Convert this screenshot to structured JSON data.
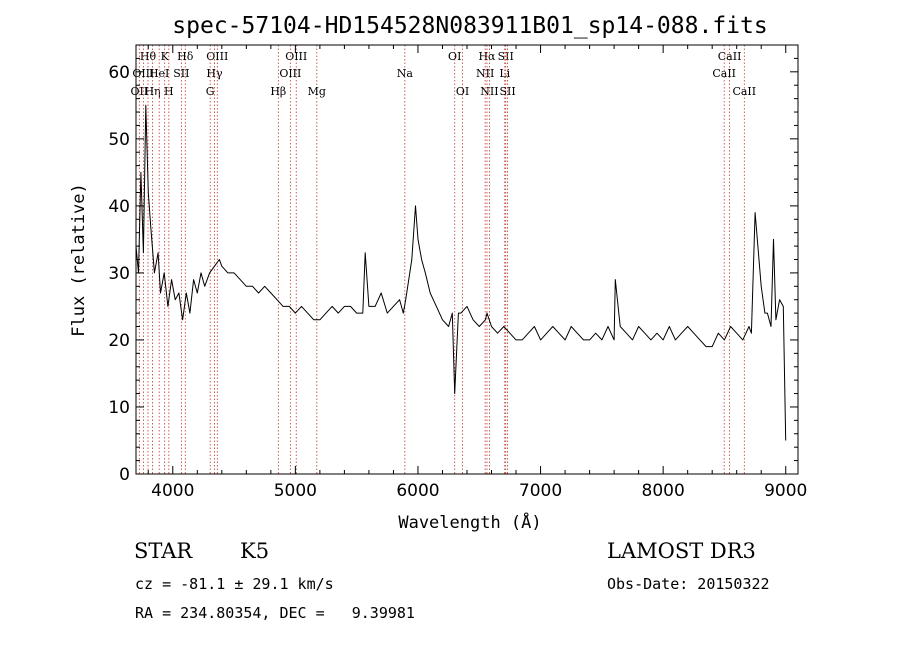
{
  "chart_data": {
    "type": "line",
    "title": "spec-57104-HD154528N083911B01_sp14-088.fits",
    "xlabel": "Wavelength (Å)",
    "ylabel": "Flux (relative)",
    "xlim": [
      3700,
      9100
    ],
    "ylim": [
      0,
      64
    ],
    "xticks": [
      4000,
      5000,
      6000,
      7000,
      8000,
      9000
    ],
    "yticks": [
      0,
      10,
      20,
      30,
      40,
      50,
      60
    ],
    "series": [
      {
        "name": "flux",
        "x": [
          3700,
          3720,
          3740,
          3760,
          3780,
          3800,
          3820,
          3850,
          3880,
          3900,
          3930,
          3960,
          3990,
          4020,
          4050,
          4080,
          4110,
          4140,
          4170,
          4200,
          4230,
          4260,
          4300,
          4340,
          4380,
          4400,
          4450,
          4500,
          4550,
          4600,
          4650,
          4700,
          4750,
          4800,
          4850,
          4900,
          4950,
          5000,
          5050,
          5100,
          5150,
          5200,
          5250,
          5300,
          5350,
          5400,
          5450,
          5500,
          5550,
          5570,
          5600,
          5650,
          5700,
          5750,
          5800,
          5850,
          5880,
          5900,
          5950,
          5980,
          6000,
          6030,
          6060,
          6100,
          6150,
          6200,
          6250,
          6280,
          6300,
          6330,
          6350,
          6400,
          6450,
          6500,
          6550,
          6563,
          6600,
          6650,
          6700,
          6750,
          6800,
          6850,
          6900,
          6950,
          7000,
          7050,
          7100,
          7150,
          7200,
          7250,
          7300,
          7350,
          7400,
          7450,
          7500,
          7550,
          7600,
          7610,
          7650,
          7700,
          7750,
          7800,
          7850,
          7900,
          7950,
          8000,
          8050,
          8100,
          8150,
          8200,
          8250,
          8300,
          8350,
          8400,
          8450,
          8500,
          8550,
          8600,
          8650,
          8700,
          8720,
          8750,
          8800,
          8830,
          8850,
          8880,
          8900,
          8920,
          8950,
          8980,
          9000
        ],
        "y": [
          34,
          30,
          45,
          33,
          55,
          42,
          37,
          30,
          33,
          27,
          30,
          25,
          29,
          26,
          27,
          23,
          27,
          24,
          29,
          27,
          30,
          28,
          30,
          31,
          32,
          31,
          30,
          30,
          29,
          28,
          28,
          27,
          28,
          27,
          26,
          25,
          25,
          24,
          25,
          24,
          23,
          23,
          24,
          25,
          24,
          25,
          25,
          24,
          24,
          33,
          25,
          25,
          27,
          24,
          25,
          26,
          24,
          26,
          32,
          40,
          35,
          32,
          30,
          27,
          25,
          23,
          22,
          24,
          12,
          24,
          24,
          25,
          23,
          22,
          23,
          24,
          22,
          21,
          22,
          21,
          20,
          20,
          21,
          22,
          20,
          21,
          22,
          21,
          20,
          22,
          21,
          20,
          20,
          21,
          20,
          22,
          20,
          29,
          22,
          21,
          20,
          22,
          21,
          20,
          21,
          20,
          22,
          20,
          21,
          22,
          21,
          20,
          19,
          19,
          21,
          20,
          22,
          21,
          20,
          22,
          21,
          39,
          28,
          24,
          24,
          22,
          35,
          23,
          26,
          25,
          5
        ]
      }
    ],
    "line_markers": [
      {
        "label": "OII",
        "wavelength": 3727,
        "row": 3
      },
      {
        "label": "Hθ",
        "wavelength": 3798,
        "row": 1
      },
      {
        "label": "OIII",
        "wavelength": 3760,
        "row": 2
      },
      {
        "label": "Hη",
        "wavelength": 3835,
        "row": 3
      },
      {
        "label": "K",
        "wavelength": 3934,
        "row": 1
      },
      {
        "label": "HeI",
        "wavelength": 3889,
        "row": 2
      },
      {
        "label": "H",
        "wavelength": 3968,
        "row": 3
      },
      {
        "label": "SII",
        "wavelength": 4070,
        "row": 2
      },
      {
        "label": "Hδ",
        "wavelength": 4102,
        "row": 1
      },
      {
        "label": "OIII",
        "wavelength": 4363,
        "row": 1
      },
      {
        "label": "Hγ",
        "wavelength": 4340,
        "row": 2
      },
      {
        "label": "G",
        "wavelength": 4305,
        "row": 3
      },
      {
        "label": "Hβ",
        "wavelength": 4861,
        "row": 3
      },
      {
        "label": "OIII",
        "wavelength": 5007,
        "row": 1
      },
      {
        "label": "OIII",
        "wavelength": 4959,
        "row": 2
      },
      {
        "label": "Mg",
        "wavelength": 5175,
        "row": 3
      },
      {
        "label": "Na",
        "wavelength": 5893,
        "row": 2
      },
      {
        "label": "OI",
        "wavelength": 6300,
        "row": 1
      },
      {
        "label": "OI",
        "wavelength": 6364,
        "row": 3
      },
      {
        "label": "Hα",
        "wavelength": 6563,
        "row": 1
      },
      {
        "label": "SII",
        "wavelength": 6716,
        "row": 1
      },
      {
        "label": "NII",
        "wavelength": 6548,
        "row": 2
      },
      {
        "label": "Li",
        "wavelength": 6708,
        "row": 2
      },
      {
        "label": "NII",
        "wavelength": 6583,
        "row": 3
      },
      {
        "label": "SII",
        "wavelength": 6731,
        "row": 3
      },
      {
        "label": "CaII",
        "wavelength": 8542,
        "row": 1
      },
      {
        "label": "CaII",
        "wavelength": 8498,
        "row": 2
      },
      {
        "label": "CaII",
        "wavelength": 8662,
        "row": 3
      }
    ]
  },
  "info": {
    "object_class": "STAR",
    "subclass": "K5",
    "survey": "LAMOST DR3",
    "cz": "cz = -81.1 ± 29.1 km/s",
    "obs_date": "Obs-Date: 20150322",
    "coords": "RA = 234.80354, DEC =   9.39981"
  },
  "colors": {
    "line_marker": "#c0392b",
    "spectrum": "#000000"
  }
}
